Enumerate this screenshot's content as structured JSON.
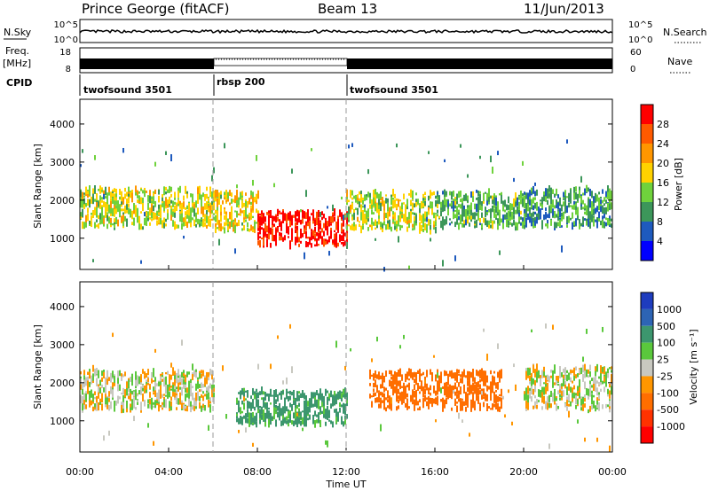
{
  "header": {
    "station": "Prince George (fitACF)",
    "beam": "Beam 13",
    "date": "11/Jun/2013"
  },
  "strip_labels": {
    "nsky": "N.Sky",
    "freq_line1": "Freq.",
    "freq_line2": "[MHz]",
    "cpid": "CPID",
    "nsearch": "N.Search",
    "nave": "Nave",
    "nsky_ticks": [
      "10^5",
      "10^0"
    ],
    "nsearch_ticks": [
      "10^5",
      "10^0"
    ],
    "freq_ticks": [
      "18",
      "8"
    ],
    "nave_ticks": [
      "60",
      "0"
    ]
  },
  "cpid_segments": [
    {
      "label": "twofsound 3501",
      "start_hour": 0,
      "end_hour": 6
    },
    {
      "label": "rbsp 200",
      "start_hour": 6,
      "end_hour": 12
    },
    {
      "label": "twofsound 3501",
      "start_hour": 12,
      "end_hour": 24
    }
  ],
  "x_axis": {
    "label": "Time UT",
    "ticks": [
      "00:00",
      "04:00",
      "08:00",
      "12:00",
      "16:00",
      "20:00",
      "00:00"
    ],
    "tick_hours": [
      0,
      4,
      8,
      12,
      16,
      20,
      24
    ],
    "range_hours": [
      0,
      24
    ]
  },
  "y_axis": {
    "label": "Slant Range [km]",
    "ticks": [
      "1000",
      "2000",
      "3000",
      "4000"
    ],
    "tick_values": [
      1000,
      2000,
      3000,
      4000
    ],
    "range_km": [
      180,
      4650
    ]
  },
  "power_scale": {
    "title": "Power [dB]",
    "tick_labels": [
      "28",
      "24",
      "20",
      "16",
      "12",
      "8",
      "4"
    ],
    "colors": [
      "#ff0000",
      "#ff5a00",
      "#ff9600",
      "#ffd200",
      "#6fd23c",
      "#3c965a",
      "#1e5abe",
      "#0000ff"
    ]
  },
  "velocity_scale": {
    "title": "Velocity [m s⁻¹]",
    "tick_labels": [
      "1000",
      "500",
      "100",
      "25",
      "-25",
      "-100",
      "-500",
      "-1000"
    ],
    "colors": [
      "#1e3cbe",
      "#2d64b4",
      "#3c966e",
      "#5ac83c",
      "#c8c8c0",
      "#ff9600",
      "#ff6e00",
      "#ff3200",
      "#ff0000"
    ]
  },
  "chart_data": [
    {
      "type": "heatmap",
      "title": "Power [dB]",
      "xlabel": "Time UT",
      "ylabel": "Slant Range [km]",
      "xlim": [
        0,
        24
      ],
      "ylim": [
        180,
        4650
      ],
      "colorbar_ticks": [
        4,
        8,
        12,
        16,
        20,
        24,
        28
      ],
      "regions": [
        {
          "t": [
            0,
            6
          ],
          "range_km": [
            1300,
            2300
          ],
          "level_db": 14
        },
        {
          "t": [
            6,
            8
          ],
          "range_km": [
            1200,
            2200
          ],
          "level_db": 16
        },
        {
          "t": [
            8,
            12
          ],
          "range_km": [
            800,
            1700
          ],
          "level_db": 28
        },
        {
          "t": [
            12,
            16
          ],
          "range_km": [
            1200,
            2200
          ],
          "level_db": 14
        },
        {
          "t": [
            16,
            20
          ],
          "range_km": [
            1300,
            2200
          ],
          "level_db": 10
        },
        {
          "t": [
            20,
            24
          ],
          "range_km": [
            1300,
            2300
          ],
          "level_db": 8
        }
      ]
    },
    {
      "type": "heatmap",
      "title": "Velocity [m s⁻¹]",
      "xlabel": "Time UT",
      "ylabel": "Slant Range [km]",
      "xlim": [
        0,
        24
      ],
      "ylim": [
        180,
        4650
      ],
      "colorbar_ticks": [
        -1000,
        -500,
        -100,
        -25,
        25,
        100,
        500,
        1000
      ],
      "regions": [
        {
          "t": [
            0,
            6
          ],
          "range_km": [
            1300,
            2300
          ],
          "velocity": 0
        },
        {
          "t": [
            7,
            12
          ],
          "range_km": [
            900,
            1800
          ],
          "velocity": 150
        },
        {
          "t": [
            13,
            19
          ],
          "range_km": [
            1300,
            2300
          ],
          "velocity": -200
        },
        {
          "t": [
            20,
            24
          ],
          "range_km": [
            1300,
            2400
          ],
          "velocity": 0
        }
      ]
    }
  ]
}
